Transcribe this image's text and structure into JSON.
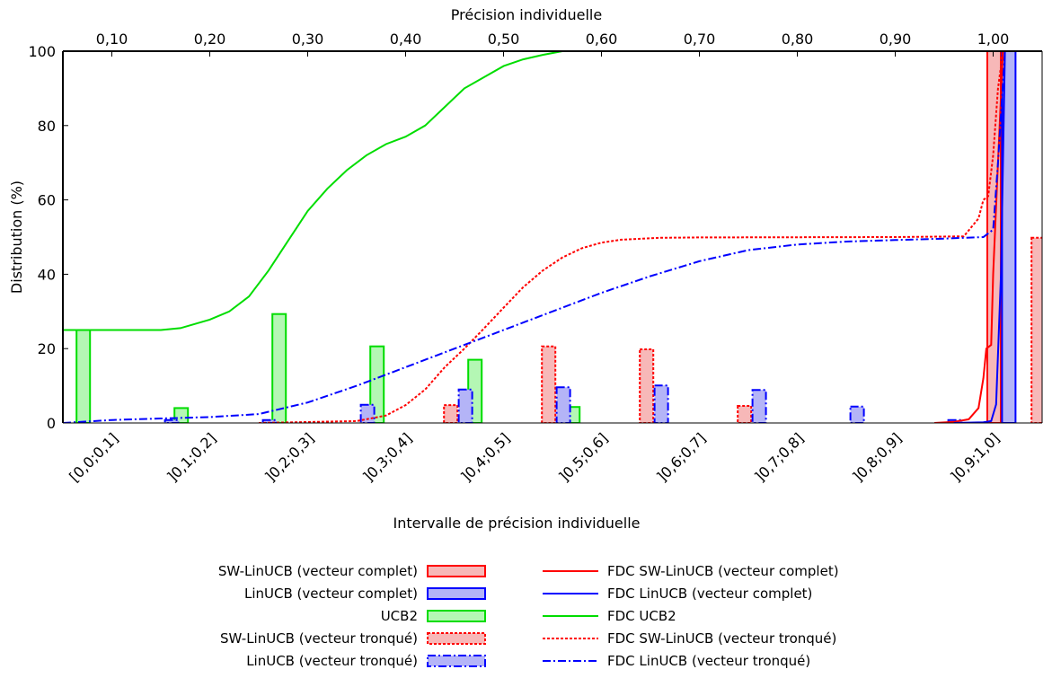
{
  "chart_data": {
    "type": "bar",
    "xlabel": "Intervalle de précision individuelle",
    "x2label": "Précision individuelle",
    "ylabel": "Distribution (%)",
    "ylim": [
      0,
      100
    ],
    "y_ticks": [
      "0",
      "20",
      "40",
      "60",
      "80",
      "100"
    ],
    "x2lim": [
      0.05,
      1.05
    ],
    "x2_ticks": [
      {
        "v": 0.1,
        "label": "0,10"
      },
      {
        "v": 0.2,
        "label": "0,20"
      },
      {
        "v": 0.3,
        "label": "0,30"
      },
      {
        "v": 0.4,
        "label": "0,40"
      },
      {
        "v": 0.5,
        "label": "0,50"
      },
      {
        "v": 0.6,
        "label": "0,60"
      },
      {
        "v": 0.7,
        "label": "0,70"
      },
      {
        "v": 0.8,
        "label": "0,80"
      },
      {
        "v": 0.9,
        "label": "0,90"
      },
      {
        "v": 1.0,
        "label": "1,00"
      }
    ],
    "categories": [
      "[0,0;0,1]",
      "]0,1;0,2]",
      "]0,2;0,3]",
      "]0,3;0,4]",
      "]0,4;0,5]",
      "]0,5;0,6]",
      "]0,6;0,7]",
      "]0,7;0,8]",
      "]0,8;0,9]",
      "]0,9;1,0]"
    ],
    "series": [
      {
        "name": "SW-LinUCB (vecteur complet)",
        "color": "#ff0000",
        "fill": "#f7b8b8",
        "style": "solid",
        "offset": 0,
        "values": [
          0,
          0,
          0,
          0,
          0,
          0,
          0,
          0,
          0,
          100
        ]
      },
      {
        "name": "LinUCB (vecteur complet)",
        "color": "#0000ff",
        "fill": "#b4b4f7",
        "style": "solid",
        "offset": 1,
        "values": [
          0,
          0,
          0,
          0,
          0,
          0,
          0,
          0,
          0,
          100
        ]
      },
      {
        "name": "UCB2",
        "color": "#00dd00",
        "fill": "#b4f7b4",
        "style": "solid",
        "offset": -2,
        "values": [
          25,
          4,
          29.3,
          20.6,
          17,
          4.3,
          0,
          0,
          0,
          0
        ]
      },
      {
        "name": "SW-LinUCB (vecteur tronqué)",
        "color": "#ff0000",
        "fill": "#f7b8b8",
        "style": "dot",
        "offset": 3,
        "values": [
          0,
          0,
          0,
          4.8,
          20.6,
          19.8,
          4.6,
          0,
          0,
          49.8
        ]
      },
      {
        "name": "LinUCB (vecteur tronqué)",
        "color": "#0000ff",
        "fill": "#b4b4f7",
        "style": "dashdot",
        "offset": 4,
        "values": [
          0.8,
          0.8,
          4.9,
          9,
          9.6,
          10.1,
          8.9,
          4.4,
          0.8,
          50.3
        ]
      }
    ],
    "cdf_series": [
      {
        "name": "FDC SW-LinUCB (vecteur complet)",
        "color": "#ff0000",
        "style": "solid",
        "points": [
          [
            0.94,
            0
          ],
          [
            0.96,
            0.3
          ],
          [
            0.975,
            1
          ],
          [
            0.985,
            4
          ],
          [
            0.99,
            12
          ],
          [
            0.993,
            20
          ],
          [
            0.998,
            21
          ],
          [
            1.0,
            40
          ],
          [
            1.005,
            70
          ],
          [
            1.01,
            100
          ]
        ]
      },
      {
        "name": "FDC LinUCB (vecteur complet)",
        "color": "#0000ff",
        "style": "solid",
        "points": [
          [
            0.96,
            0
          ],
          [
            0.99,
            0.2
          ],
          [
            0.998,
            0.5
          ],
          [
            1.003,
            5
          ],
          [
            1.008,
            40
          ],
          [
            1.012,
            100
          ]
        ]
      },
      {
        "name": "FDC UCB2",
        "color": "#00dd00",
        "style": "solid",
        "points": [
          [
            0.05,
            25
          ],
          [
            0.15,
            25
          ],
          [
            0.17,
            25.5
          ],
          [
            0.2,
            27.8
          ],
          [
            0.22,
            30
          ],
          [
            0.24,
            34
          ],
          [
            0.26,
            41
          ],
          [
            0.28,
            49
          ],
          [
            0.3,
            57
          ],
          [
            0.32,
            63
          ],
          [
            0.34,
            68
          ],
          [
            0.36,
            72
          ],
          [
            0.38,
            75
          ],
          [
            0.4,
            77
          ],
          [
            0.42,
            80
          ],
          [
            0.44,
            85
          ],
          [
            0.46,
            90
          ],
          [
            0.48,
            93
          ],
          [
            0.5,
            96
          ],
          [
            0.52,
            97.8
          ],
          [
            0.54,
            99
          ],
          [
            0.56,
            100
          ],
          [
            0.6,
            100
          ]
        ]
      },
      {
        "name": "FDC SW-LinUCB (vecteur tronqué)",
        "color": "#ff0000",
        "style": "dot",
        "points": [
          [
            0.25,
            0
          ],
          [
            0.35,
            0.5
          ],
          [
            0.38,
            2
          ],
          [
            0.4,
            4.8
          ],
          [
            0.42,
            9
          ],
          [
            0.44,
            15
          ],
          [
            0.46,
            20
          ],
          [
            0.48,
            25.4
          ],
          [
            0.5,
            31
          ],
          [
            0.52,
            36.5
          ],
          [
            0.54,
            41
          ],
          [
            0.56,
            44.5
          ],
          [
            0.58,
            47
          ],
          [
            0.6,
            48.5
          ],
          [
            0.62,
            49.3
          ],
          [
            0.66,
            49.8
          ],
          [
            0.7,
            49.9
          ],
          [
            0.9,
            50
          ],
          [
            0.97,
            50.2
          ],
          [
            0.985,
            55
          ],
          [
            0.99,
            60
          ],
          [
            0.995,
            61
          ],
          [
            1.0,
            72
          ],
          [
            1.005,
            90
          ],
          [
            1.01,
            100
          ]
        ]
      },
      {
        "name": "FDC LinUCB (vecteur tronqué)",
        "color": "#0000ff",
        "style": "dashdot",
        "points": [
          [
            0.05,
            0
          ],
          [
            0.1,
            0.8
          ],
          [
            0.15,
            1.2
          ],
          [
            0.2,
            1.6
          ],
          [
            0.25,
            2.4
          ],
          [
            0.3,
            5.5
          ],
          [
            0.35,
            10
          ],
          [
            0.4,
            15
          ],
          [
            0.45,
            20
          ],
          [
            0.5,
            25
          ],
          [
            0.55,
            30
          ],
          [
            0.6,
            35
          ],
          [
            0.65,
            39.5
          ],
          [
            0.7,
            43.5
          ],
          [
            0.75,
            46.5
          ],
          [
            0.8,
            48
          ],
          [
            0.85,
            48.8
          ],
          [
            0.9,
            49.2
          ],
          [
            0.95,
            49.6
          ],
          [
            0.99,
            50
          ],
          [
            1.0,
            52
          ],
          [
            1.005,
            70
          ],
          [
            1.012,
            100
          ]
        ]
      }
    ]
  }
}
